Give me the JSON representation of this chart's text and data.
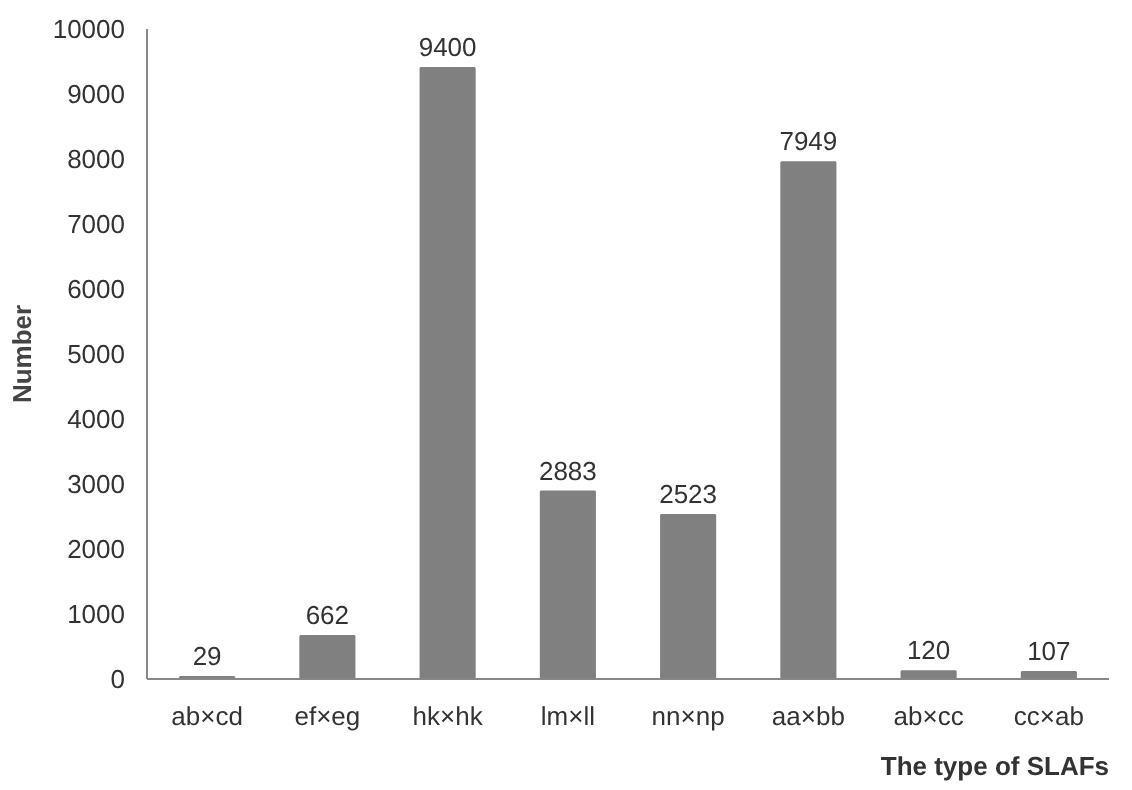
{
  "chart_data": {
    "type": "bar",
    "xlabel": "The type of SLAFs",
    "ylabel": "Number",
    "categories": [
      "ab×cd",
      "ef×eg",
      "hk×hk",
      "lm×ll",
      "nn×np",
      "aa×bb",
      "ab×cc",
      "cc×ab"
    ],
    "values": [
      29,
      662,
      9400,
      2883,
      2523,
      7949,
      120,
      107
    ],
    "color": "#808080",
    "data_labels": true,
    "grid": false,
    "ylim": [
      0,
      10000
    ],
    "yticks": [
      0,
      1000,
      2000,
      3000,
      4000,
      5000,
      6000,
      7000,
      8000,
      9000,
      10000
    ]
  }
}
